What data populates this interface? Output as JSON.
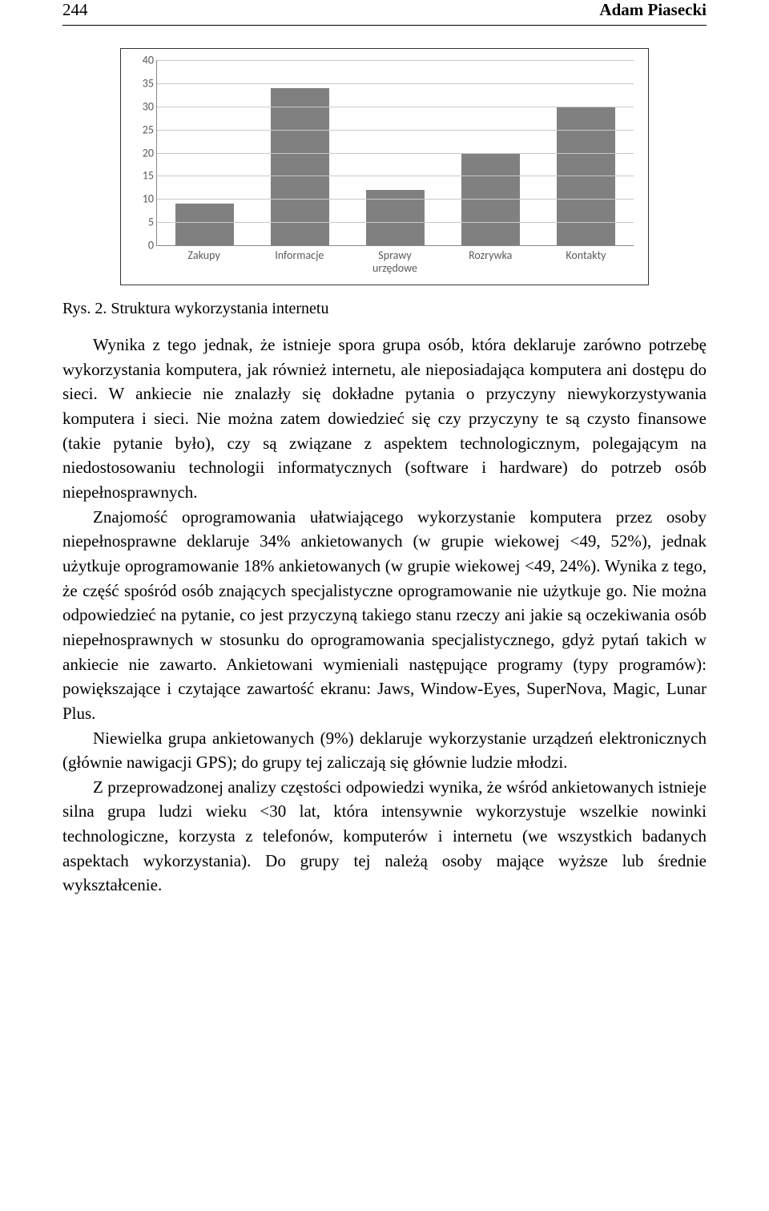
{
  "header": {
    "page_number": "244",
    "author": "Adam Piasecki"
  },
  "chart": {
    "type": "bar",
    "categories": [
      "Zakupy",
      "Informacje",
      "Sprawy urzędowe",
      "Rozrywka",
      "Kontakty"
    ],
    "values": [
      9,
      34,
      12,
      20,
      30
    ],
    "ylim_max": 40,
    "ytick_step": 5,
    "bar_color": "#808080",
    "grid_color": "#c9c9c9",
    "axis_color": "#888888",
    "text_color": "#5a5a5a",
    "background": "#ffffff"
  },
  "caption": {
    "label": "Rys. 2.",
    "text": "Struktura wykorzystania internetu"
  },
  "paragraphs": {
    "p1": "Wynika z tego jednak, że istnieje spora grupa osób, która deklaruje zarówno potrzebę wykorzystania komputera, jak również internetu, ale nieposiadająca komputera ani dostępu do sieci. W ankiecie nie znalazły się dokładne pytania o przyczyny niewykorzystywania komputera i sieci. Nie można zatem dowiedzieć się czy przyczyny te są czysto finansowe (takie pytanie było), czy są związane z aspektem technologicznym, polegającym na niedostosowaniu technologii informatycznych (software i hardware) do potrzeb osób niepełnosprawnych.",
    "p2": "Znajomość oprogramowania ułatwiającego wykorzystanie komputera przez osoby niepełnosprawne deklaruje 34% ankietowanych (w grupie wiekowej <49, 52%), jednak użytkuje oprogramowanie 18% ankietowanych (w grupie wiekowej <49, 24%). Wynika z tego, że część spośród osób znających specjalistyczne oprogramowanie nie użytkuje go. Nie można odpowiedzieć na pytanie, co jest przyczyną takiego stanu rzeczy ani jakie są oczekiwania osób niepełnosprawnych w stosunku do oprogramowania specjalistycznego, gdyż pytań takich w ankiecie nie zawarto. Ankietowani wymieniali następujące programy (typy programów): powiększające i czytające zawartość ekranu: Jaws, Window-Eyes, SuperNova, Magic, Lunar Plus.",
    "p3": "Niewielka grupa ankietowanych (9%) deklaruje wykorzystanie urządzeń elektronicznych (głównie nawigacji GPS); do grupy tej zaliczają się głównie ludzie młodzi.",
    "p4": "Z przeprowadzonej analizy częstości odpowiedzi wynika, że wśród ankietowanych istnieje silna grupa ludzi wieku <30 lat, która intensywnie wykorzystuje wszelkie nowinki technologiczne, korzysta z telefonów, komputerów i internetu (we wszystkich badanych aspektach wykorzystania). Do grupy tej należą osoby mające wyższe lub średnie wykształcenie."
  }
}
